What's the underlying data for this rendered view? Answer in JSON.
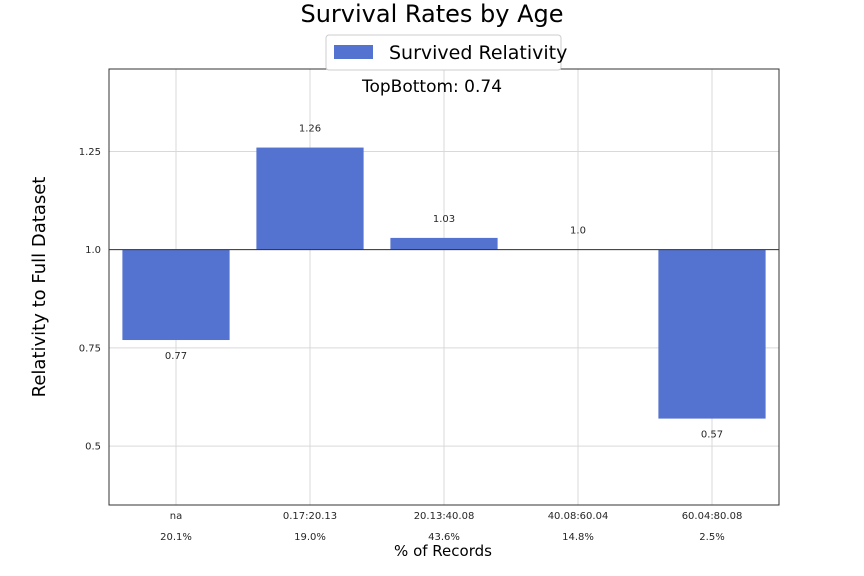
{
  "chart_data": {
    "type": "bar",
    "title": "Survival Rates by Age",
    "annotation": "TopBottom: 0.74",
    "xlabel": "% of Records",
    "ylabel": "Relativity to Full Dataset",
    "legend": {
      "label": "Survived Relativity",
      "placement": "top-center"
    },
    "baseline": 1.0,
    "ylim": [
      0.35,
      1.46
    ],
    "yticks": [
      {
        "value": 0.5,
        "label": "0.5"
      },
      {
        "value": 0.75,
        "label": "0.75"
      },
      {
        "value": 1.0,
        "label": "1.0"
      },
      {
        "value": 1.25,
        "label": "1.25"
      }
    ],
    "categories": [
      "na",
      "0.17:20.13",
      "20.13:40.08",
      "40.08:60.04",
      "60.04:80.08"
    ],
    "percent_labels": [
      "20.1%",
      "19.0%",
      "43.6%",
      "14.8%",
      "2.5%"
    ],
    "series": [
      {
        "name": "Survived Relativity",
        "values": [
          0.77,
          1.26,
          1.03,
          1.0,
          0.57
        ],
        "labels": [
          "0.77",
          "1.26",
          "1.03",
          "1.0",
          "0.57"
        ]
      }
    ],
    "grid": true,
    "colors": {
      "bar": "#5472cf",
      "grid": "#d9d9d9",
      "axes": "#333333",
      "text": "#262626"
    }
  }
}
